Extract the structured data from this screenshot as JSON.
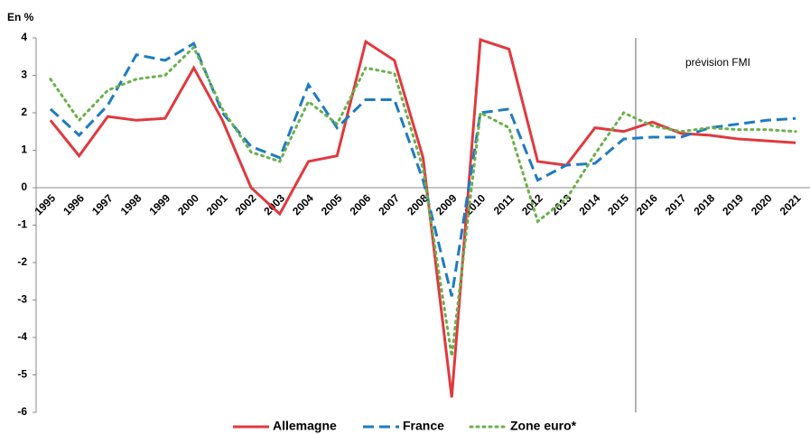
{
  "chart_data": {
    "type": "line",
    "y_label": "En %",
    "annotation": "prévision FMI",
    "categories": [
      "1995",
      "1996",
      "1997",
      "1998",
      "1999",
      "2000",
      "2001",
      "2002",
      "2003",
      "2004",
      "2005",
      "2006",
      "2007",
      "2008",
      "2009",
      "2010",
      "2011",
      "2012",
      "2013",
      "2014",
      "2015",
      "2016",
      "2017",
      "2018",
      "2019",
      "2020",
      "2021"
    ],
    "series": [
      {
        "name": "Allemagne",
        "color": "#e0393e",
        "dash": "solid",
        "values": [
          1.8,
          0.85,
          1.9,
          1.8,
          1.85,
          3.2,
          1.8,
          0.0,
          -0.7,
          0.7,
          0.85,
          3.9,
          3.4,
          0.8,
          -5.6,
          3.95,
          3.7,
          0.7,
          0.6,
          1.6,
          1.5,
          1.75,
          1.45,
          1.4,
          1.3,
          1.25,
          1.2
        ]
      },
      {
        "name": "France",
        "color": "#1f7bc1",
        "dash": "dashed",
        "values": [
          2.1,
          1.4,
          2.2,
          3.55,
          3.4,
          3.85,
          2.0,
          1.1,
          0.8,
          2.75,
          1.6,
          2.35,
          2.35,
          0.2,
          -2.9,
          2.0,
          2.1,
          0.2,
          0.6,
          0.65,
          1.3,
          1.35,
          1.35,
          1.6,
          1.7,
          1.8,
          1.85
        ]
      },
      {
        "name": "Zone euro*",
        "color": "#6ab04c",
        "dash": "dotted",
        "values": [
          2.9,
          1.8,
          2.6,
          2.9,
          3.0,
          3.75,
          2.1,
          0.95,
          0.7,
          2.3,
          1.7,
          3.2,
          3.05,
          0.5,
          -4.5,
          2.0,
          1.6,
          -0.9,
          -0.3,
          0.9,
          2.0,
          1.65,
          1.5,
          1.6,
          1.55,
          1.55,
          1.5
        ]
      }
    ],
    "ylim": [
      -6,
      4
    ],
    "yticks": [
      -6,
      -5,
      -4,
      -3,
      -2,
      -1,
      0,
      1,
      2,
      3,
      4
    ],
    "grid": false
  }
}
